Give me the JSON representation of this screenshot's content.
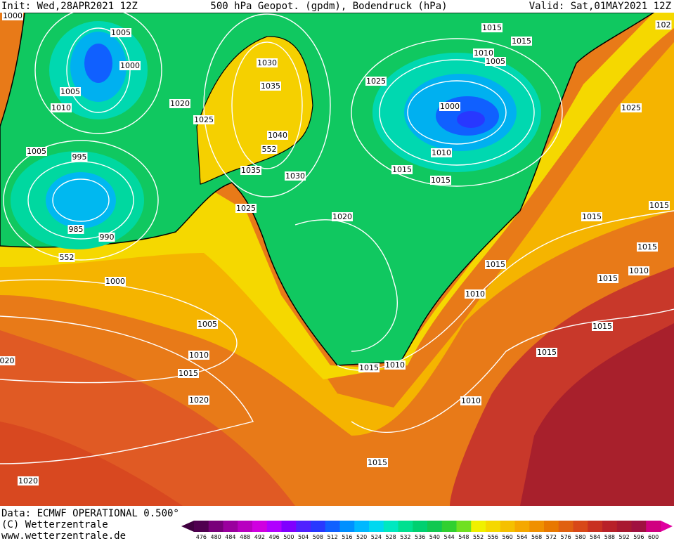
{
  "header": {
    "init": "Init: Wed,28APR2021 12Z",
    "title": "500 hPa Geopot. (gpdm), Bodendruck (hPa)",
    "valid": "Valid: Sat,01MAY2021 12Z"
  },
  "footer": {
    "data": "Data: ECMWF OPERATIONAL 0.500°",
    "copyright": "(C) Wetterzentrale",
    "url": "www.wetterzentrale.de"
  },
  "colorbar": {
    "labels": [
      476,
      480,
      484,
      488,
      492,
      496,
      500,
      504,
      508,
      512,
      516,
      520,
      524,
      528,
      532,
      536,
      540,
      544,
      548,
      552,
      556,
      560,
      564,
      568,
      572,
      576,
      580,
      584,
      588,
      592,
      596,
      600
    ],
    "colors": [
      "#500050",
      "#78007a",
      "#9a009e",
      "#b800c0",
      "#d000e0",
      "#b000ff",
      "#8000ff",
      "#5020ff",
      "#2838ff",
      "#1060ff",
      "#0090ff",
      "#00b8ff",
      "#00d8f0",
      "#00e8c0",
      "#00e090",
      "#00d070",
      "#10c850",
      "#30d030",
      "#70e020",
      "#f0f000",
      "#f5d800",
      "#f5c000",
      "#f5a800",
      "#f09000",
      "#e87800",
      "#e06010",
      "#d84818",
      "#c83020",
      "#b82028",
      "#a81830",
      "#a01040",
      "#d00080"
    ]
  },
  "isobars": [
    "1000",
    "1005",
    "1000",
    "1005",
    "1010",
    "1020",
    "1025",
    "1030",
    "1035",
    "1040",
    "552",
    "1005",
    "995",
    "1035",
    "1030",
    "1025",
    "985",
    "990",
    "552",
    "1000",
    "1005",
    "1010",
    "1015",
    "1020",
    "020",
    "1020",
    "1015",
    "1015",
    "1010",
    "1005",
    "1025",
    "1000",
    "1025",
    "1010",
    "1015",
    "1015",
    "1020",
    "1015",
    "1015",
    "1015",
    "1010",
    "1015",
    "1015",
    "1010",
    "1015",
    "1015",
    "1015",
    "1010",
    "1010",
    "1015",
    "102"
  ]
}
